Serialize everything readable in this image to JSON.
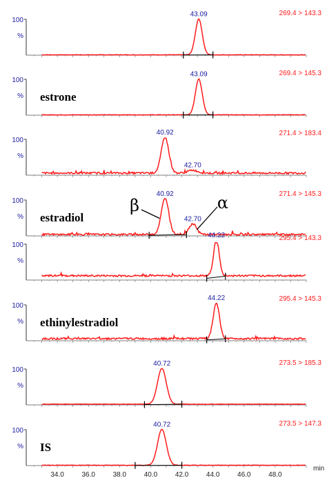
{
  "chart_data": {
    "type": "line",
    "x_unit_label": "min",
    "xlim": [
      32.0,
      50.0
    ],
    "x_ticks": [
      "34.0",
      "36.0",
      "38.0",
      "40.0",
      "42.0",
      "44.0",
      "46.0",
      "48.0"
    ],
    "y_tick_top": "100",
    "y_unit": "%",
    "colors": {
      "trace": "#ff1a1a",
      "peak_label": "#1a1aa0",
      "transition": "#ff1a1a",
      "baseline": "#000000"
    },
    "panels": [
      {
        "transition": "269.4 > 143.3",
        "compound": "",
        "peaks": [
          {
            "label": "43.09",
            "rt": 43.09,
            "height": 100,
            "width": 0.22
          }
        ],
        "integration": [
          42.1,
          44.0
        ],
        "baseline_level": 1
      },
      {
        "transition": "269.4 > 145.3",
        "compound": "estrone",
        "peaks": [
          {
            "label": "43.09",
            "rt": 43.09,
            "height": 100,
            "width": 0.22
          }
        ],
        "integration": [
          42.1,
          44.0
        ],
        "baseline_level": 1
      },
      {
        "transition": "271.4 > 183.4",
        "compound": "",
        "peaks": [
          {
            "label": "40.92",
            "rt": 40.92,
            "height": 100,
            "width": 0.24
          },
          {
            "label": "42.70",
            "rt": 42.7,
            "height": 8,
            "width": 0.3
          }
        ],
        "integration": null,
        "baseline_level": 6
      },
      {
        "transition": "271.4 > 145.3",
        "compound": "estradiol",
        "greek": [
          "β",
          "α"
        ],
        "peaks": [
          {
            "label": "40.92",
            "rt": 40.92,
            "height": 100,
            "width": 0.24
          },
          {
            "label": "42.70",
            "rt": 42.7,
            "height": 30,
            "width": 0.24
          }
        ],
        "integration": [
          39.9,
          42.3
        ],
        "baseline_level": 4
      },
      {
        "transition": "295.4 > 143.3",
        "compound": "",
        "peaks": [
          {
            "label": "44.22",
            "rt": 44.22,
            "height": 100,
            "width": 0.18
          }
        ],
        "integration": [
          43.6,
          44.8
        ],
        "baseline_level": 12
      },
      {
        "transition": "295.4 > 145.3",
        "compound": "ethinylestradiol",
        "peaks": [
          {
            "label": "44.22",
            "rt": 44.22,
            "height": 100,
            "width": 0.2
          }
        ],
        "integration": [
          43.6,
          44.8
        ],
        "baseline_level": 6
      },
      {
        "transition": "273.5 > 185.3",
        "compound": "",
        "peaks": [
          {
            "label": "40.72",
            "rt": 40.72,
            "height": 100,
            "width": 0.28
          }
        ],
        "integration": [
          39.6,
          42.0
        ],
        "baseline_level": 2
      },
      {
        "transition": "273.5 > 147.3",
        "compound": "IS",
        "peaks": [
          {
            "label": "40.72",
            "rt": 40.72,
            "height": 100,
            "width": 0.28
          }
        ],
        "integration": [
          39.0,
          42.0
        ],
        "baseline_level": 1
      }
    ]
  }
}
